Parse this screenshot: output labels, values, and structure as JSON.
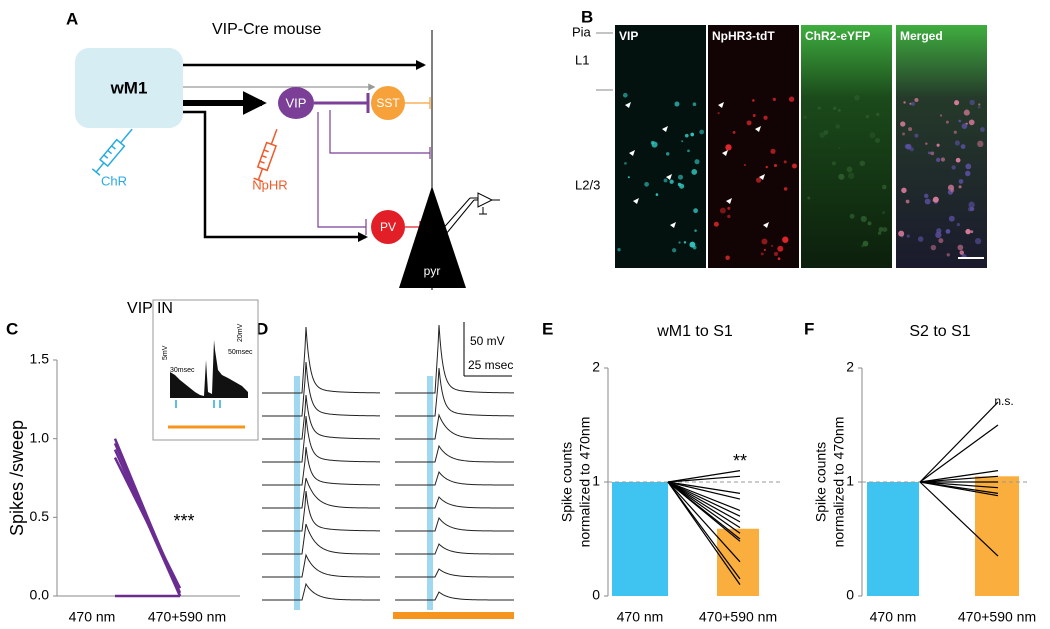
{
  "panel_labels": [
    "A",
    "B",
    "C",
    "D",
    "E",
    "F"
  ],
  "diagram": {
    "title": "VIP-Cre mouse",
    "nodes": [
      "wM1",
      "ChR",
      "VIP",
      "NpHR",
      "SST",
      "PV",
      "pyr"
    ]
  },
  "micrograph": {
    "layers": [
      "Pia",
      "L1",
      "L2/3"
    ],
    "channels": [
      "VIP",
      "NpHR3-tdT",
      "ChR2-eYFP",
      "Merged"
    ]
  },
  "traces": {
    "scale_labels": [
      "50 mV",
      "25 msec"
    ]
  },
  "chart_data": [
    {
      "type": "line",
      "title": "VIP IN",
      "y_label": "Spikes /sweep",
      "categories": [
        "470 nm",
        "470+590 nm"
      ],
      "ylim": [
        0,
        1.5
      ],
      "yticks": [
        {
          "value": 0,
          "label": "0.0"
        },
        {
          "value": 0.5,
          "label": "0.5"
        },
        {
          "value": 1,
          "label": "1.0"
        },
        {
          "value": 1.5,
          "label": "1.5"
        }
      ],
      "line_color": "#6a2c91",
      "series": [
        {
          "values": [
            1.0,
            0.0
          ]
        },
        {
          "values": [
            0.97,
            0.02
          ]
        },
        {
          "values": [
            0.93,
            0.0
          ]
        },
        {
          "values": [
            0.88,
            0.05
          ]
        },
        {
          "values": [
            0,
            0
          ]
        }
      ],
      "annotation": "***",
      "inset_labels": [
        "5mV",
        "30msec",
        "20mV",
        "50msec"
      ]
    },
    {
      "type": "bar",
      "title": "wM1 to S1",
      "y_label": [
        "Spike counts",
        "normalized to 470nm"
      ],
      "categories": [
        "470 nm",
        "470+590 nm"
      ],
      "values": [
        1,
        0.59
      ],
      "colors": [
        "#3fc3f0",
        "#f9ae3e"
      ],
      "ylim": [
        0,
        2
      ],
      "yticks": [
        0,
        1,
        2
      ],
      "reference_line": 1,
      "line_color": "#000000",
      "series": [
        {
          "values": [
            1,
            1.1
          ]
        },
        {
          "values": [
            1,
            1.05
          ]
        },
        {
          "values": [
            1,
            0.9
          ]
        },
        {
          "values": [
            1,
            0.85
          ]
        },
        {
          "values": [
            1,
            0.75
          ]
        },
        {
          "values": [
            1,
            0.7
          ]
        },
        {
          "values": [
            1,
            0.65
          ]
        },
        {
          "values": [
            1,
            0.6
          ]
        },
        {
          "values": [
            1,
            0.55
          ]
        },
        {
          "values": [
            1,
            0.5
          ]
        },
        {
          "values": [
            1,
            0.48
          ]
        },
        {
          "values": [
            1,
            0.3
          ]
        },
        {
          "values": [
            1,
            0.15
          ]
        },
        {
          "values": [
            1,
            0.1
          ]
        }
      ],
      "annotation": "**"
    },
    {
      "type": "bar",
      "title": "S2 to S1",
      "y_label": [
        "Spike counts",
        "normalized to 470nm"
      ],
      "categories": [
        "470 nm",
        "470+590 nm"
      ],
      "values": [
        1,
        1.05
      ],
      "colors": [
        "#3fc3f0",
        "#f9ae3e"
      ],
      "ylim": [
        0,
        2
      ],
      "yticks": [
        0,
        1,
        2
      ],
      "reference_line": 1,
      "line_color": "#000000",
      "series": [
        {
          "values": [
            1,
            1.7
          ]
        },
        {
          "values": [
            1,
            1.5
          ]
        },
        {
          "values": [
            1,
            1.1
          ]
        },
        {
          "values": [
            1,
            1.05
          ]
        },
        {
          "values": [
            1,
            1.0
          ]
        },
        {
          "values": [
            1,
            0.95
          ]
        },
        {
          "values": [
            1,
            0.9
          ]
        },
        {
          "values": [
            1,
            0.88
          ]
        },
        {
          "values": [
            1,
            0.35
          ]
        }
      ],
      "annotation": "n.s."
    }
  ]
}
